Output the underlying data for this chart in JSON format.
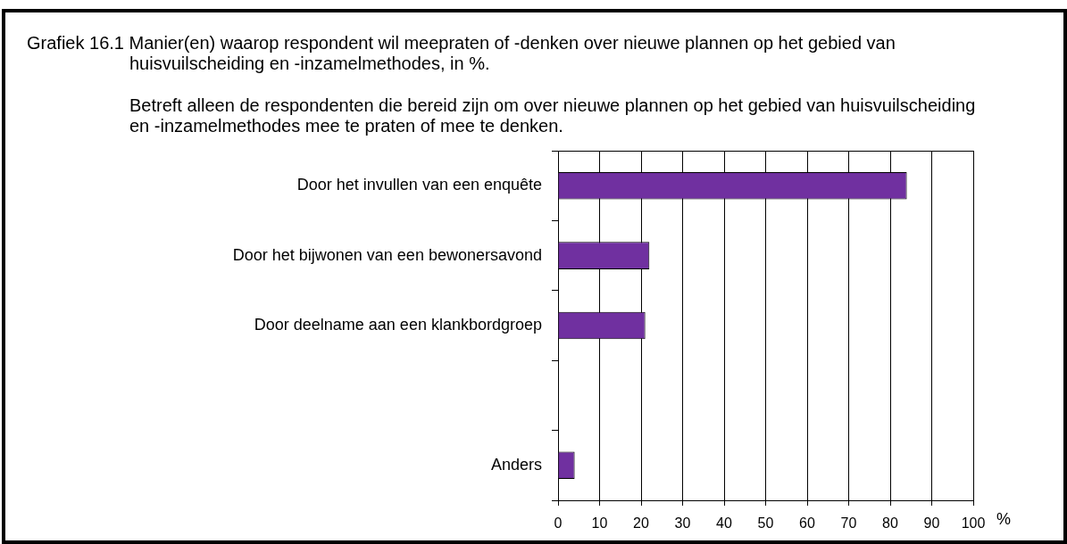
{
  "chart_data": {
    "type": "bar",
    "orientation": "horizontal",
    "title": "Grafiek 16.1 Manier(en) waarop respondent wil meepraten of -denken over nieuwe plannen op het gebied van huisvuilscheiding en -inzamelmethodes, in %.",
    "subtitle": "Betreft alleen de respondenten die bereid zijn om over nieuwe plannen op het gebied van huisvuilscheiding en -inzamelmethodes mee te praten of mee te denken.",
    "xlabel": "%",
    "categories": [
      "Door het invullen van een enquête",
      "Door het bijwonen van een bewonersavond",
      "Door deelname aan een klankbordgroep",
      null,
      "Anders"
    ],
    "values": [
      84,
      22,
      21,
      null,
      4
    ],
    "color": "#7030a0",
    "xlim": [
      0,
      100
    ],
    "xticks": [
      0,
      10,
      20,
      30,
      40,
      50,
      60,
      70,
      80,
      90,
      100
    ],
    "grid": "x"
  }
}
